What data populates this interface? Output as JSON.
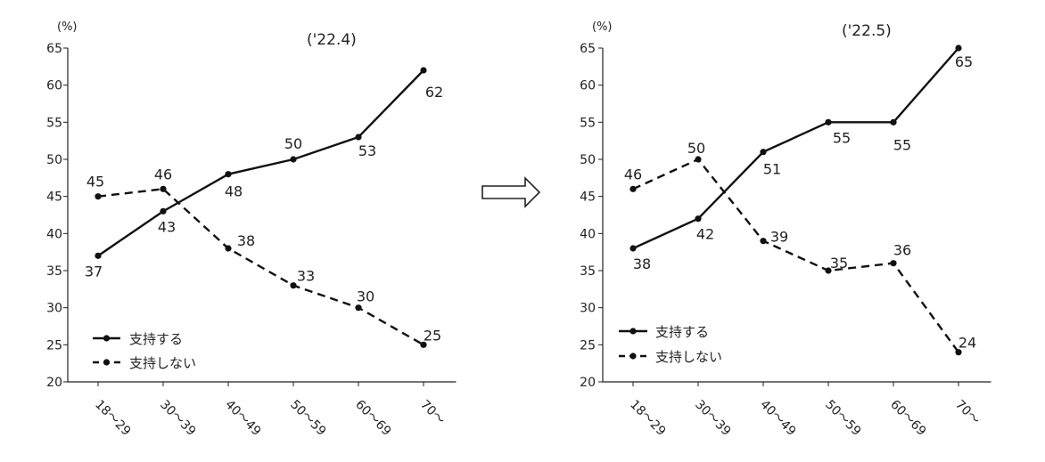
{
  "chart_data": [
    {
      "type": "line",
      "title": "('22.4)",
      "ylabel": "(%)",
      "xlabel": "",
      "ylim": [
        20,
        65
      ],
      "yticks": [
        20,
        25,
        30,
        35,
        40,
        45,
        50,
        55,
        60,
        65
      ],
      "categories": [
        "18～29",
        "30～39",
        "40～49",
        "50～59",
        "60～69",
        "70～"
      ],
      "grid": false,
      "legend_position": "bottom-left",
      "series": [
        {
          "name": "支持する",
          "style": "solid",
          "values": [
            37,
            43,
            48,
            50,
            53,
            62
          ]
        },
        {
          "name": "支持しない",
          "style": "dashed",
          "values": [
            45,
            46,
            38,
            33,
            30,
            25
          ]
        }
      ]
    },
    {
      "type": "line",
      "title": "('22.5)",
      "ylabel": "(%)",
      "xlabel": "",
      "ylim": [
        20,
        65
      ],
      "yticks": [
        20,
        25,
        30,
        35,
        40,
        45,
        50,
        55,
        60,
        65
      ],
      "categories": [
        "18～29",
        "30～39",
        "40～49",
        "50～59",
        "60～69",
        "70～"
      ],
      "grid": false,
      "legend_position": "bottom-left",
      "series": [
        {
          "name": "支持する",
          "style": "solid",
          "values": [
            38,
            42,
            51,
            55,
            55,
            65
          ]
        },
        {
          "name": "支持しない",
          "style": "dashed",
          "values": [
            46,
            50,
            39,
            35,
            36,
            24
          ]
        }
      ]
    }
  ],
  "transition_arrow": "right-arrow-icon",
  "colors": {
    "line": "#111111",
    "axis": "#222222",
    "text": "#222222"
  }
}
